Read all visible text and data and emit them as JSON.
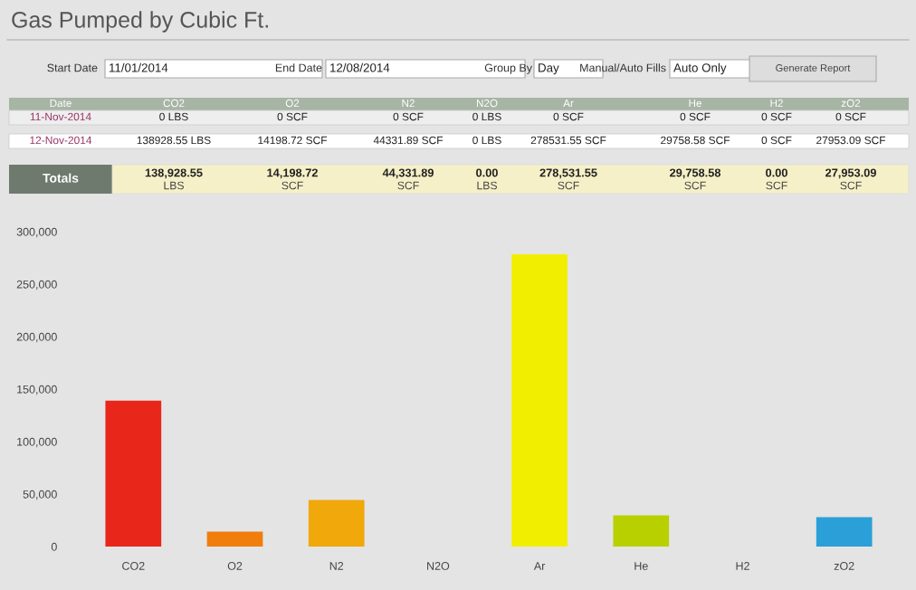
{
  "chart_data": {
    "type": "bar",
    "title": "Gas Pumped by Cubic Ft.",
    "categories": [
      "CO2",
      "O2",
      "N2",
      "N2O",
      "Ar",
      "He",
      "H2",
      "zO2"
    ],
    "values": [
      138928.55,
      14198.72,
      44331.89,
      0,
      278531.55,
      29758.58,
      0,
      27953.09
    ],
    "colors": [
      "#e8261a",
      "#f07d0c",
      "#f0a80a",
      "#f5d000",
      "#f2ee00",
      "#b8d000",
      "#22cc22",
      "#2a9fd8"
    ],
    "ylim": [
      0,
      300000
    ],
    "yticks": [
      {
        "value": 0,
        "label": "0"
      },
      {
        "value": 50000,
        "label": "50,000"
      },
      {
        "value": 100000,
        "label": "100,000"
      },
      {
        "value": 150000,
        "label": "150,000"
      },
      {
        "value": 200000,
        "label": "200,000"
      },
      {
        "value": 250000,
        "label": "250,000"
      },
      {
        "value": 300000,
        "label": "300,000"
      }
    ],
    "grid": false,
    "annotations": [
      "Start Date",
      "11/01/2014",
      "End Date",
      "12/08/2014",
      "Group By",
      "Day",
      "Manual/Auto Fills",
      "Auto Only",
      "Generate Report",
      "Date",
      "11-Nov-2014",
      "0 LBS",
      "0 SCF",
      "0 SCF",
      "0 LBS",
      "0 SCF",
      "0 SCF",
      "0 SCF",
      "0 SCF",
      "12-Nov-2014",
      "138928.55 LBS",
      "14198.72 SCF",
      "44331.89 SCF",
      "0 LBS",
      "278531.55 SCF",
      "29758.58 SCF",
      "0 SCF",
      "27953.09 SCF",
      "Totals",
      "138,928.55\nLBS",
      "14,198.72\nSCF",
      "44,331.89\nSCF",
      "0.00\nLBS",
      "278,531.55\nSCF",
      "29,758.58\nSCF",
      "0.00\nSCF",
      "27,953.09\nSCF"
    ]
  }
}
